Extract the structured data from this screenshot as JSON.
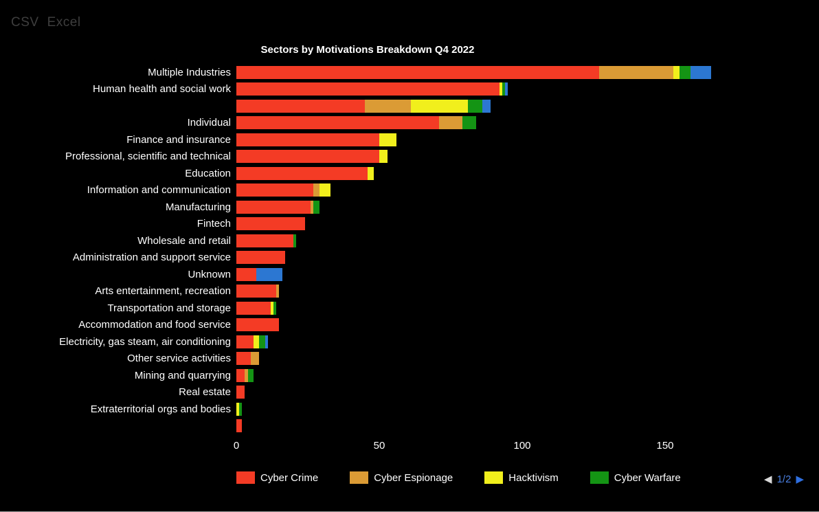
{
  "export": {
    "csv": "CSV",
    "excel": "Excel"
  },
  "chart_data": {
    "type": "bar",
    "orientation": "horizontal",
    "stacked": true,
    "title": "Sectors by Motivations Breakdown Q4 2022",
    "categories": [
      "Multiple Industries",
      "Human health and social work",
      "",
      "Individual",
      "Finance and insurance",
      "Professional, scientific and technical",
      "Education",
      "Information and communication",
      "Manufacturing",
      "Fintech",
      "Wholesale and retail",
      "Administration and support service",
      "Unknown",
      "Arts entertainment, recreation",
      "Transportation and storage",
      "Accommodation and food service",
      "Electricity, gas steam, air conditioning",
      "Other service activities",
      "Mining and quarrying",
      "Real estate",
      "Extraterritorial orgs and bodies",
      ""
    ],
    "series": [
      {
        "name": "Cyber Crime",
        "color": "#f43b25",
        "values": [
          127,
          92,
          45,
          71,
          50,
          50,
          46,
          27,
          26,
          24,
          20,
          17,
          7,
          14,
          12,
          15,
          6,
          5,
          3,
          3,
          0,
          2
        ]
      },
      {
        "name": "Cyber Espionage",
        "color": "#db9b35",
        "values": [
          26,
          0,
          16,
          8,
          0,
          0,
          0,
          2,
          1,
          0,
          0,
          0,
          0,
          1,
          0,
          0,
          0,
          3,
          1,
          0,
          0,
          0
        ]
      },
      {
        "name": "Hacktivism",
        "color": "#f1ef1c",
        "values": [
          2,
          1,
          20,
          0,
          6,
          3,
          2,
          4,
          0,
          0,
          0,
          0,
          0,
          0,
          1,
          0,
          2,
          0,
          0,
          0,
          1,
          0
        ]
      },
      {
        "name": "Cyber Warfare",
        "color": "#149414",
        "values": [
          4,
          1,
          5,
          5,
          0,
          0,
          0,
          0,
          2,
          0,
          1,
          0,
          0,
          0,
          1,
          0,
          2,
          0,
          2,
          0,
          1,
          0
        ]
      },
      {
        "name": "",
        "color": "#2c77d2",
        "values": [
          7,
          1,
          3,
          0,
          0,
          0,
          0,
          0,
          0,
          0,
          0,
          0,
          9,
          0,
          0,
          0,
          1,
          0,
          0,
          0,
          0,
          0
        ]
      }
    ],
    "x_ticks": [
      0,
      50,
      100,
      150
    ],
    "xlim": [
      0,
      170
    ],
    "legend": [
      "Cyber Crime",
      "Cyber Espionage",
      "Hacktivism",
      "Cyber Warfare"
    ],
    "legend_position": "bottom"
  },
  "pagination": {
    "prev_icon": "◀",
    "label": "1/2",
    "next_icon": "▶"
  }
}
